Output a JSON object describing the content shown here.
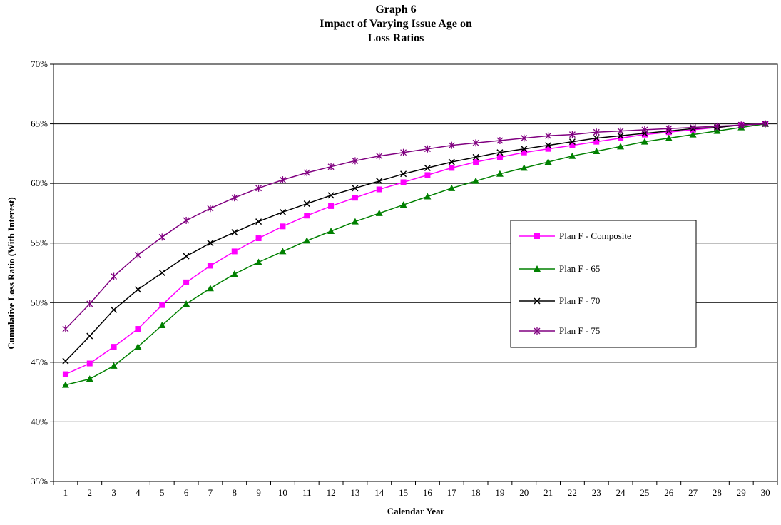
{
  "chart_data": {
    "type": "line",
    "title": [
      "Graph 6",
      "Impact of Varying Issue Age on",
      "Loss Ratios"
    ],
    "xlabel": "Calendar Year",
    "ylabel": "Cumulative Loss Ratio (With Interest)",
    "x": [
      1,
      2,
      3,
      4,
      5,
      6,
      7,
      8,
      9,
      10,
      11,
      12,
      13,
      14,
      15,
      16,
      17,
      18,
      19,
      20,
      21,
      22,
      23,
      24,
      25,
      26,
      27,
      28,
      29,
      30
    ],
    "ylim": [
      0.35,
      0.7
    ],
    "yticks": [
      0.35,
      0.4,
      0.45,
      0.5,
      0.55,
      0.6,
      0.65,
      0.7
    ],
    "ytick_labels": [
      "35%",
      "40%",
      "45%",
      "50%",
      "55%",
      "60%",
      "65%",
      "70%"
    ],
    "grid": "horizontal major gridlines",
    "legend_position": "right, inside plot",
    "series": [
      {
        "name": "Plan F - Composite",
        "color": "#FF00FF",
        "marker": "square",
        "values": [
          0.44,
          0.449,
          0.463,
          0.478,
          0.498,
          0.517,
          0.531,
          0.543,
          0.554,
          0.564,
          0.573,
          0.581,
          0.588,
          0.595,
          0.601,
          0.607,
          0.613,
          0.618,
          0.622,
          0.626,
          0.629,
          0.632,
          0.635,
          0.638,
          0.641,
          0.643,
          0.645,
          0.647,
          0.649,
          0.65
        ]
      },
      {
        "name": "Plan F - 65",
        "color": "#008000",
        "marker": "triangle",
        "values": [
          0.431,
          0.436,
          0.447,
          0.463,
          0.481,
          0.499,
          0.512,
          0.524,
          0.534,
          0.543,
          0.552,
          0.56,
          0.568,
          0.575,
          0.582,
          0.589,
          0.596,
          0.602,
          0.608,
          0.613,
          0.618,
          0.623,
          0.627,
          0.631,
          0.635,
          0.638,
          0.641,
          0.644,
          0.647,
          0.65
        ]
      },
      {
        "name": "Plan F - 70",
        "color": "#000000",
        "marker": "x",
        "values": [
          0.451,
          0.472,
          0.494,
          0.511,
          0.525,
          0.539,
          0.55,
          0.559,
          0.568,
          0.576,
          0.583,
          0.59,
          0.596,
          0.602,
          0.608,
          0.613,
          0.618,
          0.622,
          0.626,
          0.629,
          0.632,
          0.635,
          0.638,
          0.64,
          0.642,
          0.644,
          0.646,
          0.647,
          0.649,
          0.65
        ]
      },
      {
        "name": "Plan F - 75",
        "color": "#800080",
        "marker": "asterisk",
        "values": [
          0.478,
          0.499,
          0.522,
          0.54,
          0.555,
          0.569,
          0.579,
          0.588,
          0.596,
          0.603,
          0.609,
          0.614,
          0.619,
          0.623,
          0.626,
          0.629,
          0.632,
          0.634,
          0.636,
          0.638,
          0.64,
          0.641,
          0.643,
          0.644,
          0.645,
          0.646,
          0.647,
          0.648,
          0.649,
          0.65
        ]
      }
    ]
  }
}
